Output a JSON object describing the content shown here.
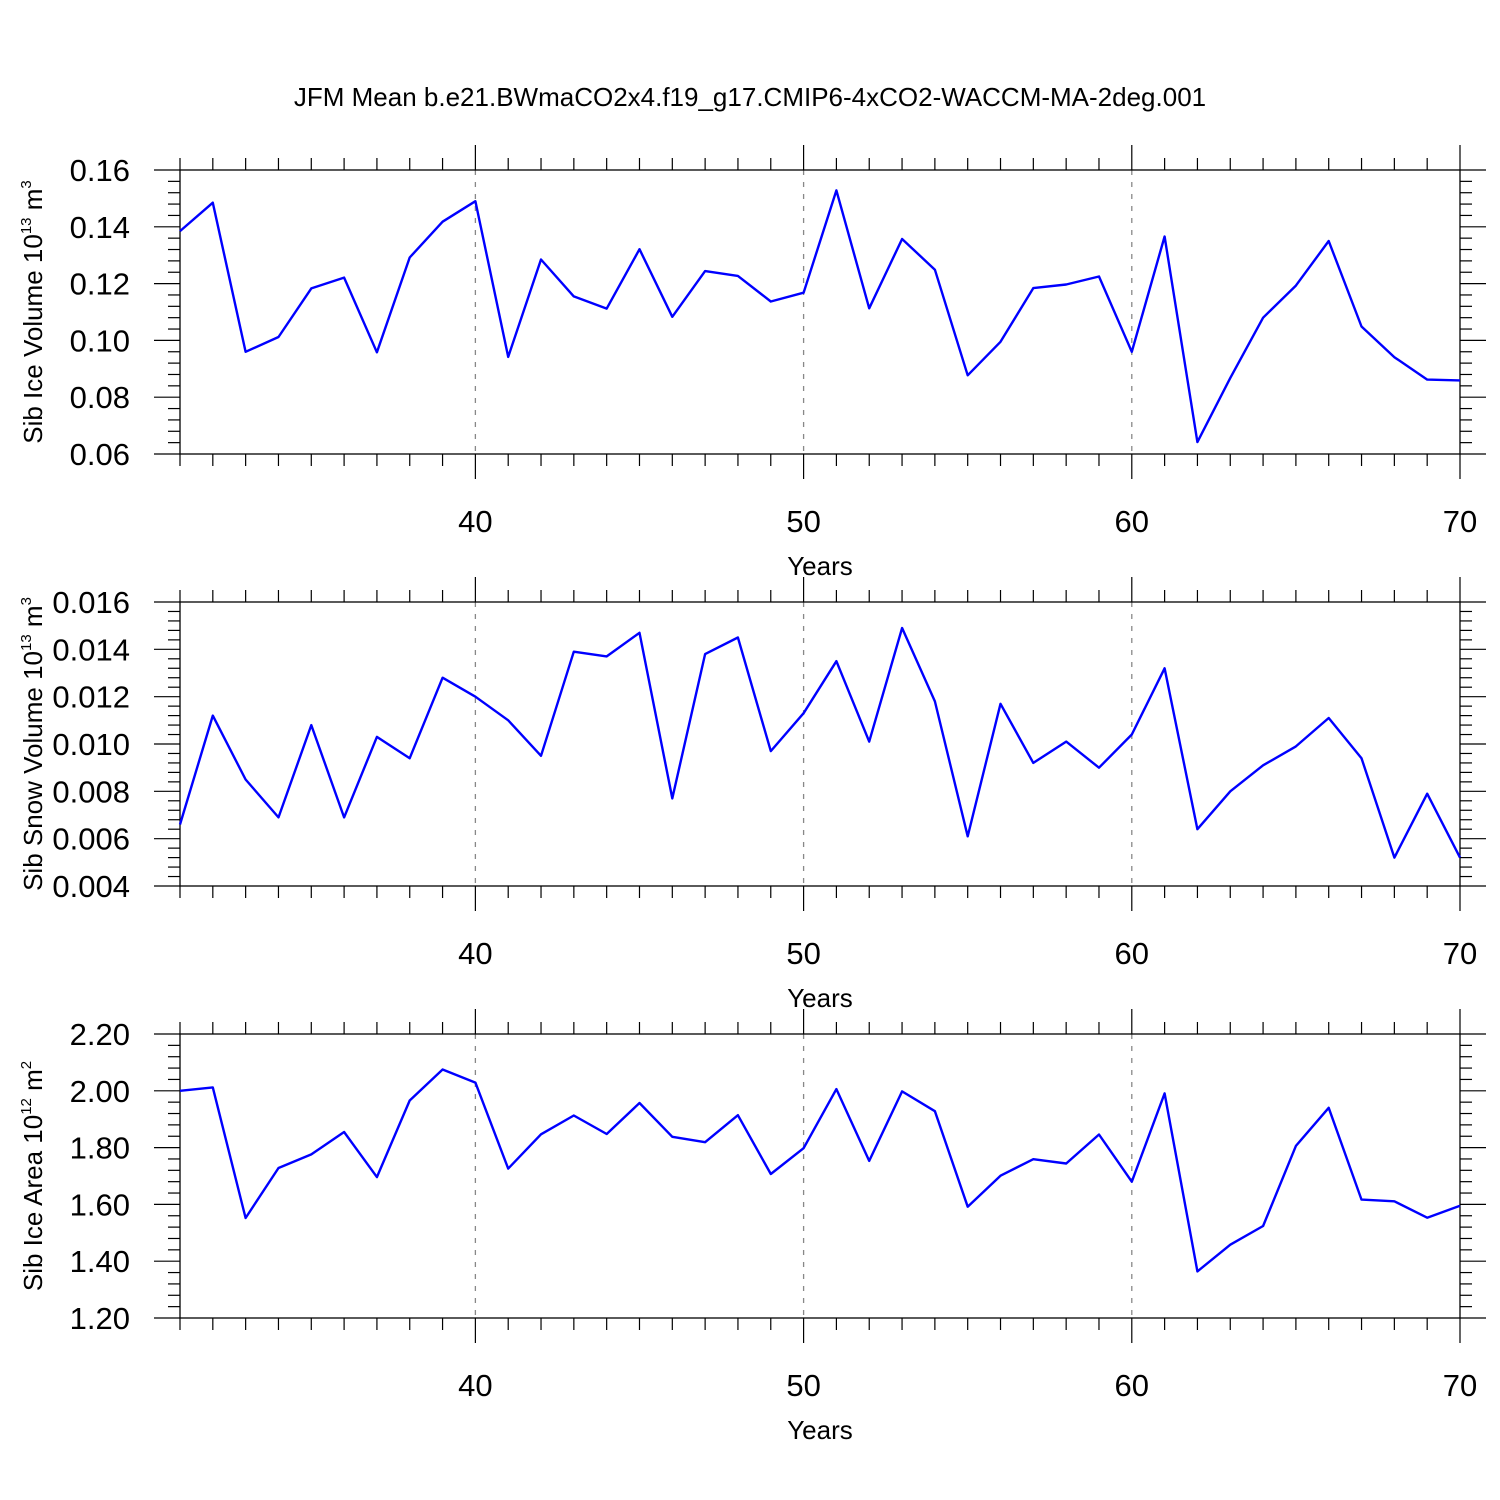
{
  "chart_data": {
    "type": "line",
    "title": "JFM Mean b.e21.BWmaCO2x4.f19_g17.CMIP6-4xCO2-WACCM-MA-2deg.001",
    "series_color": "#0000ff",
    "panels": [
      {
        "name": "ice-volume",
        "ylabel": "Sib Ice Volume 10",
        "ylabel_exp": "13",
        "ylabel_unit": " m",
        "ylabel_unit_exp": "3",
        "xlabel": "Years",
        "xlim": [
          31,
          70
        ],
        "ylim": [
          0.06,
          0.16
        ],
        "yticks": [
          0.06,
          0.08,
          0.1,
          0.12,
          0.14,
          0.16
        ],
        "ytick_labels": [
          "0.06",
          "0.08",
          "0.10",
          "0.12",
          "0.14",
          "0.16"
        ],
        "xticks": [
          40,
          50,
          60,
          70
        ],
        "xtick_labels": [
          "40",
          "50",
          "60",
          "70"
        ],
        "x": [
          31,
          32,
          33,
          34,
          35,
          36,
          37,
          38,
          39,
          40,
          41,
          42,
          43,
          44,
          45,
          46,
          47,
          48,
          49,
          50,
          51,
          52,
          53,
          54,
          55,
          56,
          57,
          58,
          59,
          60,
          61,
          62,
          63,
          64,
          65,
          66,
          67,
          68,
          69,
          70
        ],
        "values": [
          0.1385,
          0.1485,
          0.096,
          0.1012,
          0.1183,
          0.1221,
          0.0958,
          0.1292,
          0.1418,
          0.149,
          0.0942,
          0.1285,
          0.1155,
          0.1112,
          0.1321,
          0.1083,
          0.1244,
          0.1227,
          0.1137,
          0.1168,
          0.1528,
          0.1113,
          0.1357,
          0.1249,
          0.0877,
          0.0995,
          0.1184,
          0.1197,
          0.1225,
          0.096,
          0.1366,
          0.0642,
          0.0868,
          0.108,
          0.1193,
          0.135,
          0.1049,
          0.0941,
          0.0862,
          0.0859
        ]
      },
      {
        "name": "snow-volume",
        "ylabel": "Sib Snow Volume 10",
        "ylabel_exp": "13",
        "ylabel_unit": " m",
        "ylabel_unit_exp": "3",
        "xlabel": "Years",
        "xlim": [
          31,
          70
        ],
        "ylim": [
          0.004,
          0.016
        ],
        "yticks": [
          0.004,
          0.006,
          0.008,
          0.01,
          0.012,
          0.014,
          0.016
        ],
        "ytick_labels": [
          "0.004",
          "0.006",
          "0.008",
          "0.010",
          "0.012",
          "0.014",
          "0.016"
        ],
        "xticks": [
          40,
          50,
          60,
          70
        ],
        "xtick_labels": [
          "40",
          "50",
          "60",
          "70"
        ],
        "x": [
          31,
          32,
          33,
          34,
          35,
          36,
          37,
          38,
          39,
          40,
          41,
          42,
          43,
          44,
          45,
          46,
          47,
          48,
          49,
          50,
          51,
          52,
          53,
          54,
          55,
          56,
          57,
          58,
          59,
          60,
          61,
          62,
          63,
          64,
          65,
          66,
          67,
          68,
          69,
          70
        ],
        "values": [
          0.0066,
          0.0112,
          0.0085,
          0.0069,
          0.0108,
          0.0069,
          0.0103,
          0.0094,
          0.0128,
          0.012,
          0.011,
          0.0095,
          0.0139,
          0.0137,
          0.0147,
          0.0077,
          0.0138,
          0.0145,
          0.0097,
          0.0113,
          0.0135,
          0.0101,
          0.0149,
          0.0118,
          0.0061,
          0.0117,
          0.0092,
          0.0101,
          0.009,
          0.0104,
          0.0132,
          0.0064,
          0.008,
          0.0091,
          0.0099,
          0.0111,
          0.0094,
          0.0052,
          0.0079,
          0.0052
        ]
      },
      {
        "name": "ice-area",
        "ylabel": "Sib Ice Area 10",
        "ylabel_exp": "12",
        "ylabel_unit": " m",
        "ylabel_unit_exp": "2",
        "xlabel": "Years",
        "xlim": [
          31,
          70
        ],
        "ylim": [
          1.2,
          2.2
        ],
        "yticks": [
          1.2,
          1.4,
          1.6,
          1.8,
          2.0,
          2.2
        ],
        "ytick_labels": [
          "1.20",
          "1.40",
          "1.60",
          "1.80",
          "2.00",
          "2.20"
        ],
        "xticks": [
          40,
          50,
          60,
          70
        ],
        "xtick_labels": [
          "40",
          "50",
          "60",
          "70"
        ],
        "x": [
          31,
          32,
          33,
          34,
          35,
          36,
          37,
          38,
          39,
          40,
          41,
          42,
          43,
          44,
          45,
          46,
          47,
          48,
          49,
          50,
          51,
          52,
          53,
          54,
          55,
          56,
          57,
          58,
          59,
          60,
          61,
          62,
          63,
          64,
          65,
          66,
          67,
          68,
          69,
          70
        ],
        "values": [
          2.0,
          2.012,
          1.552,
          1.728,
          1.776,
          1.855,
          1.696,
          1.966,
          2.075,
          2.029,
          1.726,
          1.847,
          1.913,
          1.848,
          1.957,
          1.838,
          1.819,
          1.914,
          1.707,
          1.798,
          2.006,
          1.753,
          1.998,
          1.928,
          1.592,
          1.701,
          1.759,
          1.744,
          1.846,
          1.68,
          1.991,
          1.364,
          1.458,
          1.524,
          1.806,
          1.94,
          1.617,
          1.611,
          1.553,
          1.595
        ]
      }
    ]
  }
}
